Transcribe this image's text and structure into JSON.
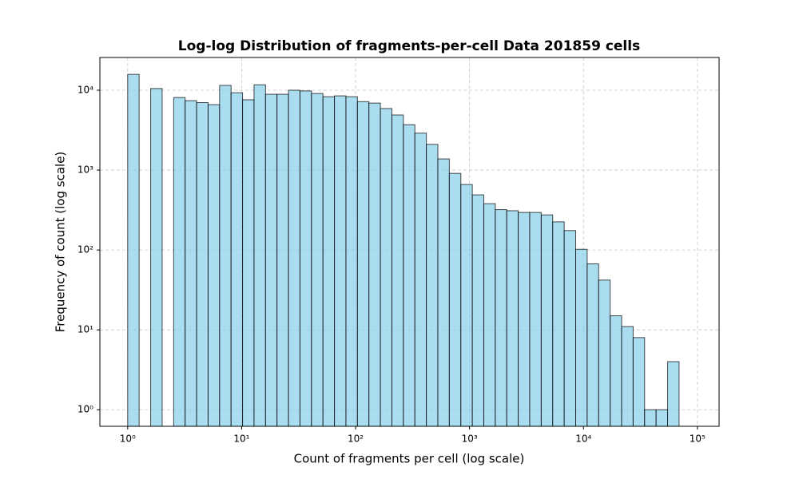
{
  "chart_data": {
    "type": "histogram",
    "title": "Log-log Distribution of fragments-per-cell Data 201859 cells",
    "x_label": "Count of fragments per cell (log scale)",
    "y_label": "Frequency of count (log scale)",
    "bins": [
      1,
      1.261,
      1.591,
      2.007,
      2.531,
      3.192,
      4.026,
      5.078,
      6.405,
      8.078,
      10.19,
      12.85,
      16.21,
      20.44,
      25.78,
      32.52,
      41.02,
      51.73,
      65.25,
      82.3,
      103.8,
      130.9,
      165.1,
      208.3,
      262.7,
      331.4,
      418,
      527.2,
      664.9,
      838.7,
      1058,
      1334,
      1683,
      2122,
      2677,
      3376,
      4259,
      5371,
      6775,
      8545,
      10780,
      13590,
      17150,
      21630,
      27280,
      34400,
      43400,
      54740,
      69040
    ],
    "counts": [
      15800,
      0,
      10500,
      0,
      8100,
      7400,
      7000,
      6600,
      11500,
      9300,
      7600,
      11700,
      8900,
      8900,
      10000,
      9800,
      9100,
      8300,
      8500,
      8300,
      7200,
      6900,
      5900,
      4900,
      3700,
      2900,
      2100,
      1380,
      910,
      660,
      490,
      380,
      320,
      310,
      295,
      295,
      275,
      225,
      175,
      102,
      67,
      42,
      15,
      11,
      8,
      1,
      1,
      4
    ],
    "color": "#87ceeb",
    "edge_color": "#000000",
    "xlog": true,
    "ylog": true,
    "xlim": [
      0.57,
      155000
    ],
    "ylim": [
      0.62,
      25700
    ],
    "xticks": [
      {
        "value": 1,
        "label": "10⁰"
      },
      {
        "value": 10,
        "label": "10¹"
      },
      {
        "value": 100,
        "label": "10²"
      },
      {
        "value": 1000,
        "label": "10³"
      },
      {
        "value": 10000,
        "label": "10⁴"
      },
      {
        "value": 100000,
        "label": "10⁵"
      }
    ],
    "yticks": [
      {
        "value": 1,
        "label": "10⁰"
      },
      {
        "value": 10,
        "label": "10¹"
      },
      {
        "value": 100,
        "label": "10²"
      },
      {
        "value": 1000,
        "label": "10³"
      },
      {
        "value": 10000,
        "label": "10⁴"
      }
    ],
    "grid": true
  }
}
